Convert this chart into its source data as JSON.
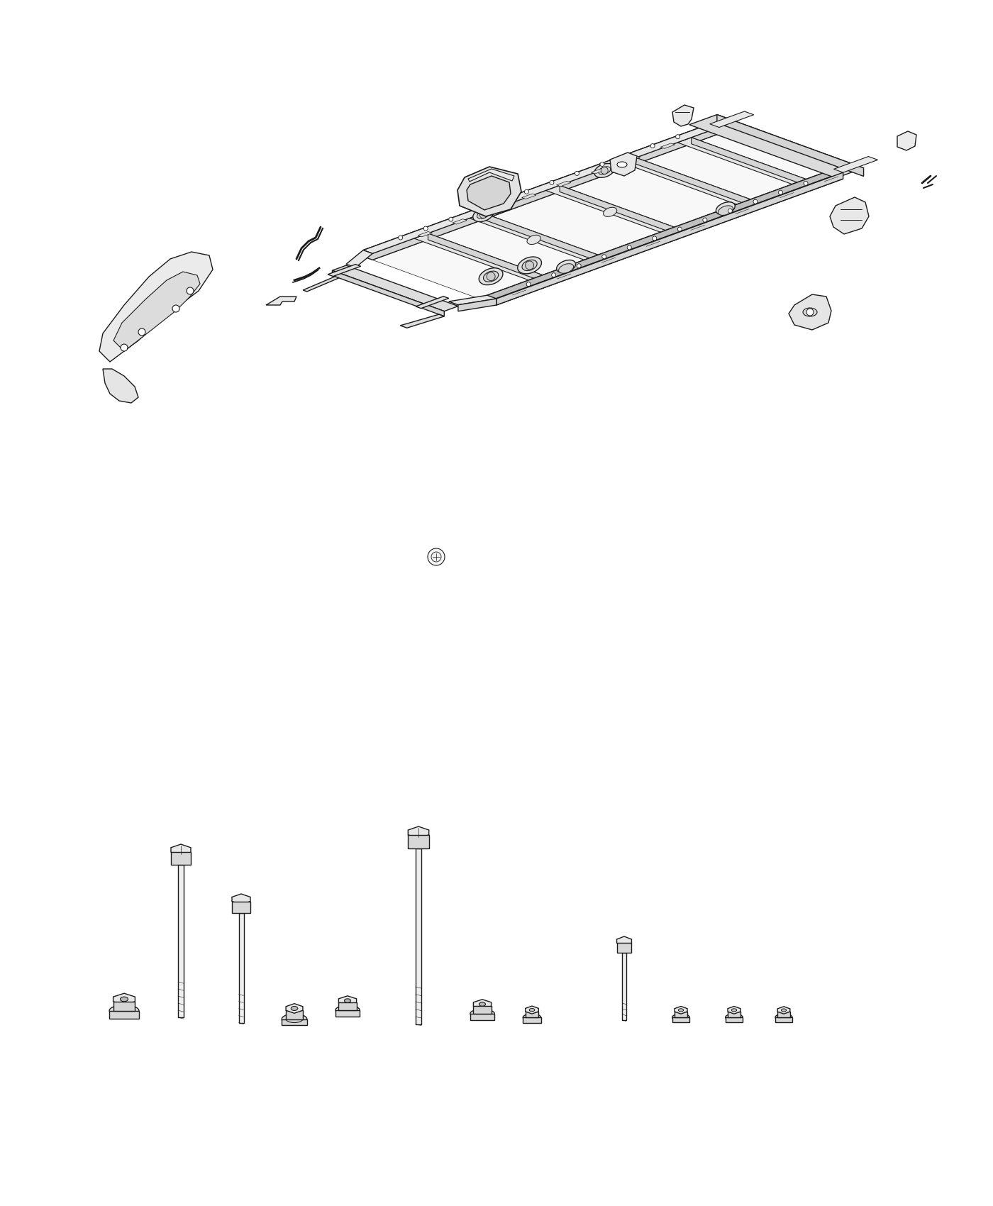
{
  "background_color": "#ffffff",
  "line_color": "#1a1a1a",
  "line_width": 1.0,
  "fig_width": 14.0,
  "fig_height": 17.0,
  "dpi": 100,
  "frame_fill": "#f0f0f0",
  "shade_light": "#e8e8e8",
  "shade_mid": "#d5d5d5",
  "shade_dark": "#c0c0c0",
  "white": "#ffffff"
}
